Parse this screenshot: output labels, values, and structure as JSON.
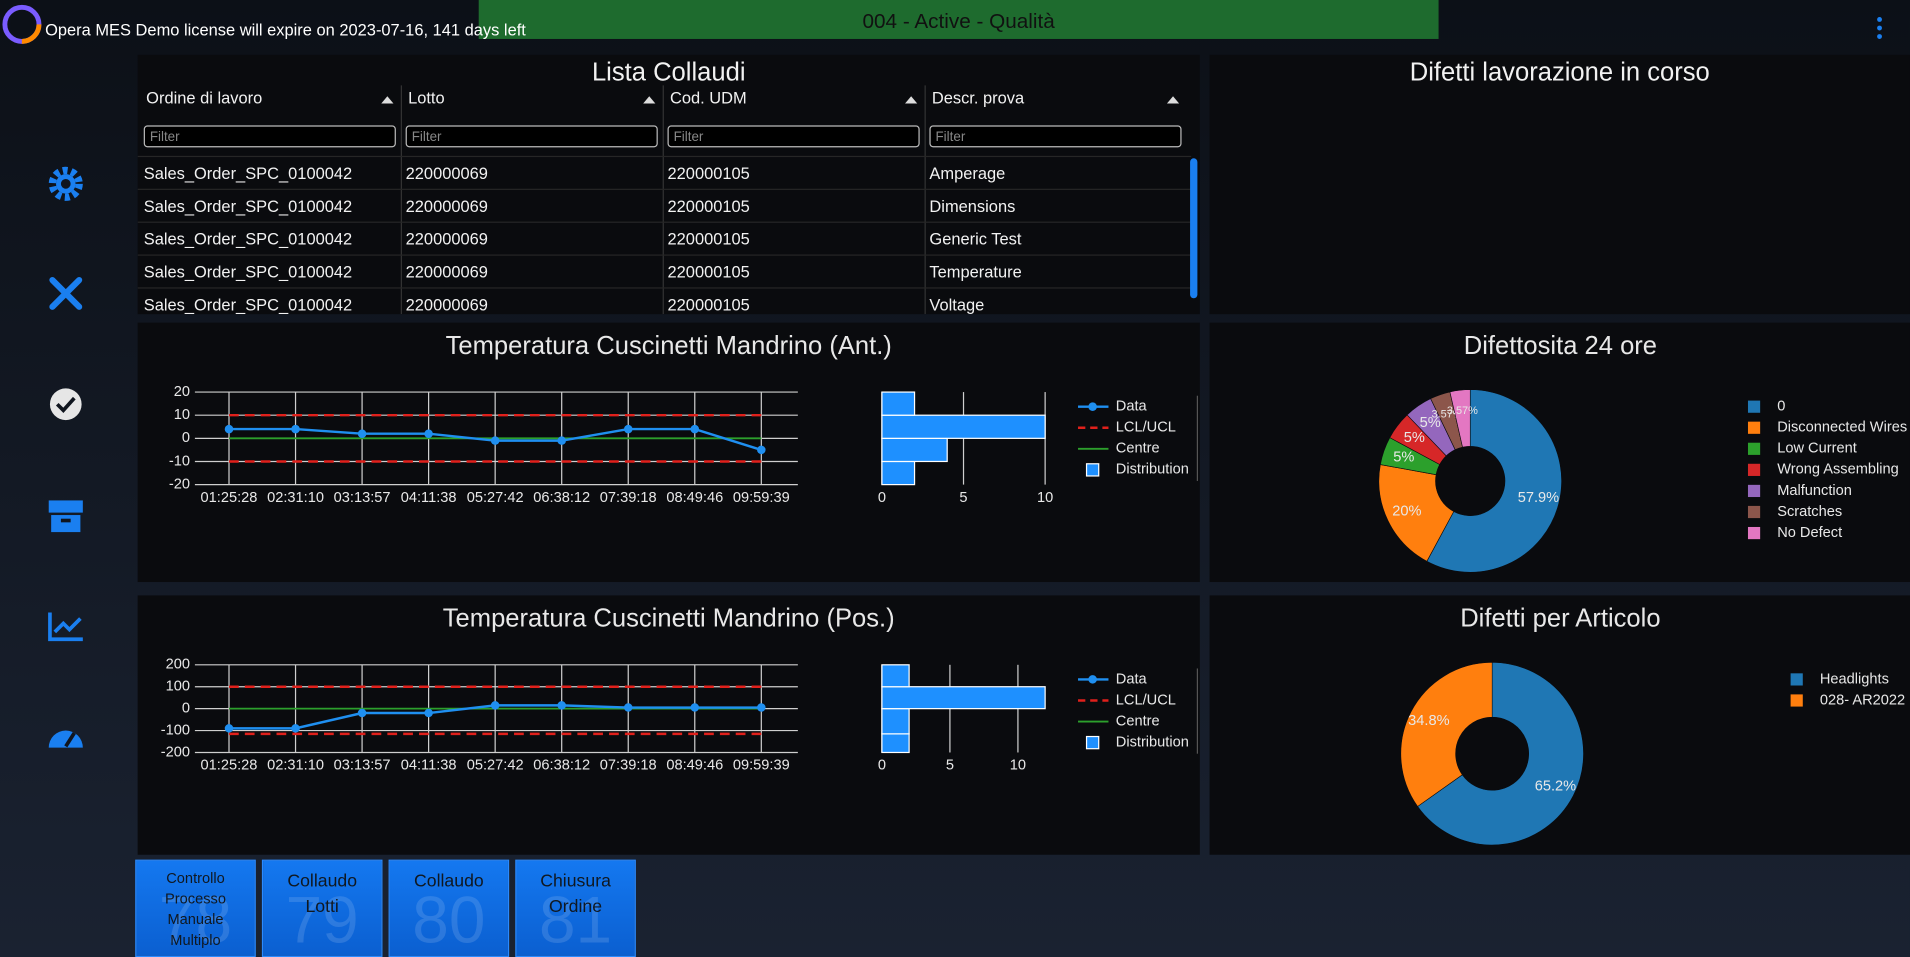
{
  "header": {
    "license_notice": "Opera MES Demo license will expire on 2023-07-16, 141 days left",
    "status": "004 - Active - Qualità"
  },
  "table": {
    "title": "Lista Collaudi",
    "columns": [
      "Ordine di lavoro",
      "Lotto",
      "Cod. UDM",
      "Descr. prova"
    ],
    "filter_placeholder": "Filter",
    "rows": [
      [
        "Sales_Order_SPC_0100042",
        "220000069",
        "220000105",
        "Amperage"
      ],
      [
        "Sales_Order_SPC_0100042",
        "220000069",
        "220000105",
        "Dimensions"
      ],
      [
        "Sales_Order_SPC_0100042",
        "220000069",
        "220000105",
        "Generic Test"
      ],
      [
        "Sales_Order_SPC_0100042",
        "220000069",
        "220000105",
        "Temperature"
      ],
      [
        "Sales_Order_SPC_0100042",
        "220000069",
        "220000105",
        "Voltage"
      ]
    ]
  },
  "defects_panel": {
    "title": "Difetti lavorazione in corso"
  },
  "control_charts": [
    {
      "type": "line",
      "title": "Temperatura Cuscinetti Mandrino (Ant.)",
      "categories": [
        "01:25:28",
        "02:31:10",
        "03:13:57",
        "04:11:38",
        "05:27:42",
        "06:38:12",
        "07:39:18",
        "08:49:46",
        "09:59:39"
      ],
      "values": [
        4,
        4,
        2,
        2,
        -1,
        -1,
        4,
        4,
        -5
      ],
      "ucl": 10,
      "lcl": -10,
      "centre": 0,
      "ylim": [
        -20,
        20
      ],
      "yticks": [
        -20,
        -10,
        0,
        10,
        20
      ],
      "grid": true,
      "legend": [
        "Data",
        "LCL/UCL",
        "Centre",
        "Distribution"
      ],
      "color": "#1f8ff0",
      "limit_color": "#e0201b",
      "centre_color": "#2ca02c",
      "histogram": {
        "bins": [
          -20,
          -10,
          0,
          10,
          20
        ],
        "counts": [
          2,
          4,
          10,
          2
        ],
        "xlim": [
          0,
          10
        ],
        "xticks": [
          0,
          5,
          10
        ],
        "color": "#1e90ff"
      }
    },
    {
      "type": "line",
      "title": "Temperatura Cuscinetti Mandrino (Pos.)",
      "categories": [
        "01:25:28",
        "02:31:10",
        "03:13:57",
        "04:11:38",
        "05:27:42",
        "06:38:12",
        "07:39:18",
        "08:49:46",
        "09:59:39"
      ],
      "values": [
        -90,
        -90,
        -20,
        -20,
        15,
        15,
        5,
        5,
        5
      ],
      "ucl": 100,
      "lcl": -115,
      "centre": 0,
      "ylim": [
        -200,
        200
      ],
      "yticks": [
        -200,
        -100,
        0,
        100,
        200
      ],
      "grid": true,
      "legend": [
        "Data",
        "LCL/UCL",
        "Centre",
        "Distribution"
      ],
      "color": "#1f8ff0",
      "limit_color": "#e0201b",
      "centre_color": "#2ca02c",
      "histogram": {
        "bins": [
          -200,
          -115,
          0,
          100,
          200
        ],
        "counts": [
          2,
          2,
          12,
          2
        ],
        "xlim": [
          0,
          12
        ],
        "xticks": [
          0,
          5,
          10
        ],
        "color": "#1e90ff"
      }
    }
  ],
  "pie_charts": [
    {
      "type": "pie",
      "title": "Difettosita 24 ore",
      "categories": [
        "0",
        "Disconnected Wires",
        "Low Current",
        "Wrong Assembling",
        "Malfunction",
        "Scratches",
        "No Defect"
      ],
      "values": [
        57.9,
        20,
        5,
        5,
        5,
        3.57,
        3.57
      ],
      "value_labels": [
        "57.9%",
        "20%",
        "5%",
        "5%",
        "5%",
        "3.57%",
        "3.57%"
      ],
      "colors": [
        "#1f77b4",
        "#ff7f0e",
        "#2ca02c",
        "#d62728",
        "#9467bd",
        "#8c564b",
        "#e377c2"
      ],
      "hole": 0.38
    },
    {
      "type": "pie",
      "title": "Difetti per Articolo",
      "categories": [
        "Headlights",
        "028- AR2022"
      ],
      "values": [
        65.2,
        34.8
      ],
      "value_labels": [
        "65.2%",
        "34.8%"
      ],
      "colors": [
        "#1f77b4",
        "#ff7f0e"
      ],
      "hole": 0.4
    }
  ],
  "buttons": [
    {
      "label": "Controllo Processo Manuale Multiplo",
      "number": 78
    },
    {
      "label": "Collaudo Lotti",
      "number": 79
    },
    {
      "label": "Collaudo",
      "number": 80
    },
    {
      "label": "Chiusura Ordine",
      "number": 81
    }
  ]
}
